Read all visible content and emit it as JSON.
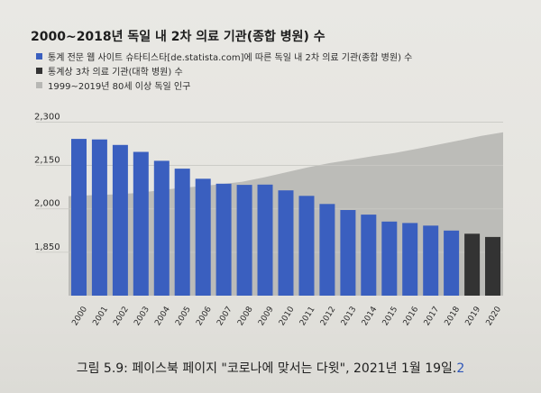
{
  "figure_title": "2000~2018년 독일 내 2차 의료 기관(종합 병원) 수",
  "legend": [
    {
      "label": "통계 전문 웹 사이트 슈타티스타[de.statista.com]에 따른 독일 내 2차 의료 기관(종합 병원) 수",
      "color": "#3a5fbf"
    },
    {
      "label": "통계상 3차 의료 기관(대학 병원) 수",
      "color": "#333333"
    },
    {
      "label": "1999~2019년 80세 이상 독일 인구",
      "color": "#b7b7b4"
    }
  ],
  "caption": {
    "text": "그림 5.9: 페이스북 페이지 \"코로나에 맞서는 다윗\", 2021년 1월 19일.",
    "ref": "2"
  },
  "chart_data": {
    "type": "bar",
    "title": "2000~2018년 독일 내 2차 의료 기관(종합 병원) 수",
    "categories": [
      "2000",
      "2001",
      "2002",
      "2003",
      "2004",
      "2005",
      "2006",
      "2007",
      "2008",
      "2009",
      "2010",
      "2011",
      "2012",
      "2013",
      "2014",
      "2015",
      "2016",
      "2017",
      "2018",
      "2019",
      "2020"
    ],
    "yticks": [
      "2,300",
      "2,150",
      "2,000",
      "1,850"
    ],
    "ylim": [
      1700,
      2345
    ],
    "series": [
      {
        "name": "통계 전문 웹 사이트 슈타티스타[de.statista.com]에 따른 독일 내 2차 의료 기관(종합 병원) 수",
        "color": "#3a5fbf",
        "values": [
          2242,
          2240,
          2221,
          2197,
          2166,
          2139,
          2104,
          2087,
          2083,
          2084,
          2064,
          2045,
          2017,
          1996,
          1980,
          1956,
          1951,
          1942,
          1925,
          null,
          null
        ]
      },
      {
        "name": "통계상 3차 의료 기관(대학 병원) 수",
        "color": "#333333",
        "values": [
          null,
          null,
          null,
          null,
          null,
          null,
          null,
          null,
          null,
          null,
          null,
          null,
          null,
          null,
          null,
          null,
          null,
          null,
          null,
          1914,
          1903
        ]
      }
    ],
    "area": {
      "name": "1999~2019년 80세 이상 독일 인구",
      "color": "#b7b7b4",
      "values": [
        2044,
        2047,
        2050,
        2054,
        2062,
        2071,
        2078,
        2085,
        2094,
        2109,
        2126,
        2143,
        2158,
        2170,
        2182,
        2193,
        2207,
        2222,
        2237,
        2252,
        2265
      ]
    },
    "grid": true,
    "legend_position": "top-left"
  }
}
